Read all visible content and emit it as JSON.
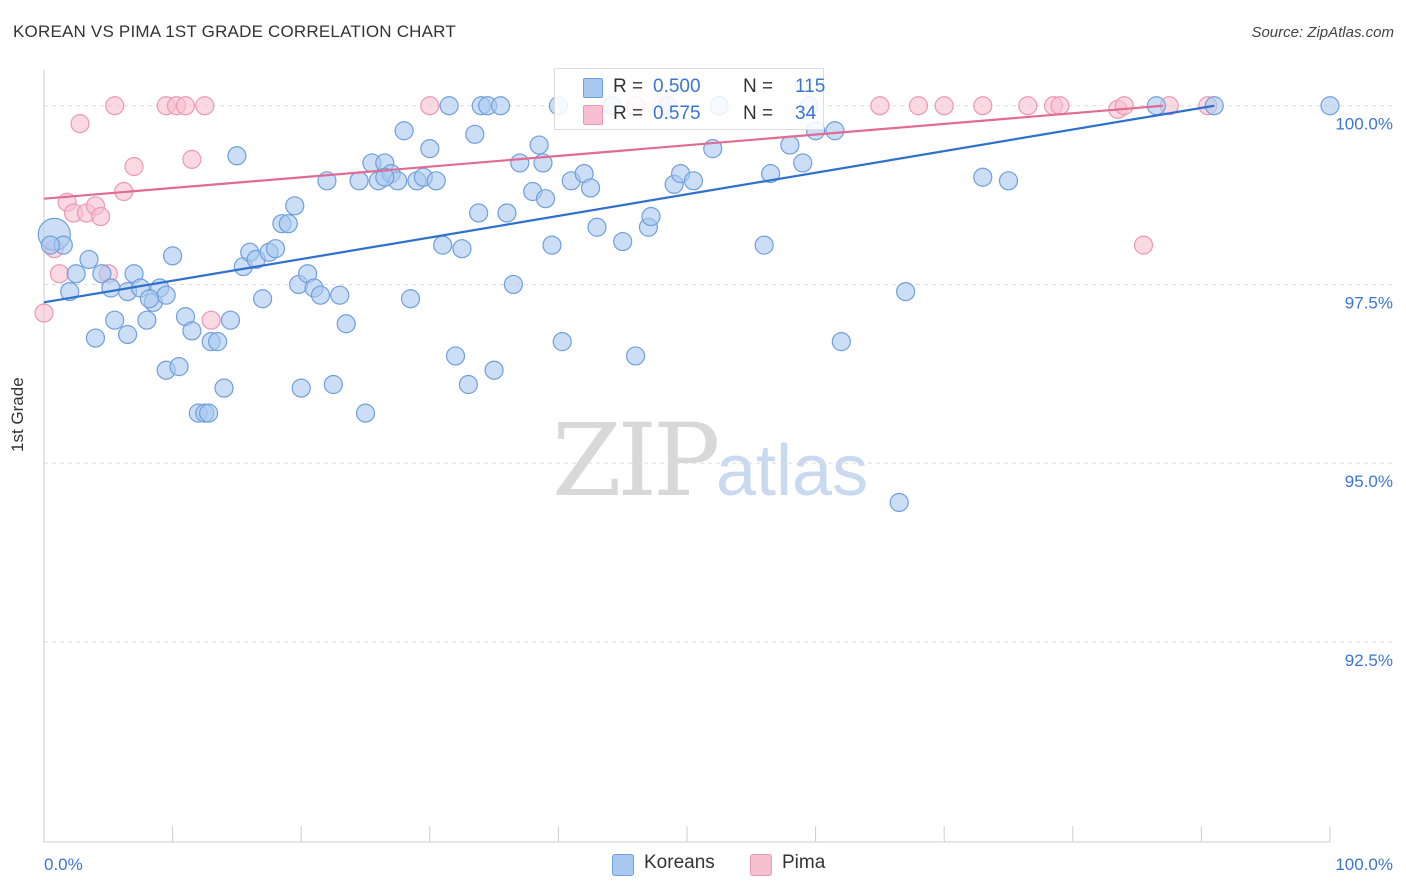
{
  "title": "KOREAN VS PIMA 1ST GRADE CORRELATION CHART",
  "source": "Source: ZipAtlas.com",
  "watermark": {
    "zip": "ZIP",
    "atlas": "atlas"
  },
  "legend": {
    "rows": [
      {
        "r_label": "R =",
        "r_value": "0.500",
        "n_label": "N =",
        "n_value": "115"
      },
      {
        "r_label": "R =",
        "r_value": "0.575",
        "n_label": "N =",
        "n_value": "34"
      }
    ],
    "bottom": [
      "Koreans",
      "Pima"
    ]
  },
  "colors": {
    "korean_fill": "#a9c8ef",
    "korean_stroke": "#6f9fdc",
    "korean_line": "#2f70cc",
    "pima_fill": "#f6c0d1",
    "pima_stroke": "#ec97b4",
    "pima_line": "#e06b93",
    "axis_text": "#3a76d0",
    "grid": "#dcdcdc"
  },
  "chart_data": {
    "type": "scatter",
    "title": "KOREAN VS PIMA 1ST GRADE CORRELATION CHART",
    "xlabel": "",
    "ylabel": "1st Grade",
    "xlim": [
      0,
      100
    ],
    "ylim": [
      89.7,
      100.5
    ],
    "x_tick_labels": [
      "0.0%",
      "100.0%"
    ],
    "y_ticks": [
      92.5,
      95.0,
      97.5,
      100.0
    ],
    "y_tick_labels": [
      "92.5%",
      "95.0%",
      "97.5%",
      "100.0%"
    ],
    "grid": "horizontal dashed",
    "legend_position": "top-center",
    "series": [
      {
        "name": "Koreans",
        "R": 0.5,
        "N": 115,
        "trend": [
          [
            0,
            97.25
          ],
          [
            91,
            100.0
          ]
        ],
        "points": [
          [
            0.8,
            98.2
          ],
          [
            1.5,
            98.05
          ],
          [
            0.5,
            98.05
          ],
          [
            2.5,
            97.65
          ],
          [
            3.5,
            97.85
          ],
          [
            4.5,
            97.65
          ],
          [
            4.0,
            96.75
          ],
          [
            5.2,
            97.45
          ],
          [
            5.5,
            97.0
          ],
          [
            6.5,
            97.4
          ],
          [
            6.5,
            96.8
          ],
          [
            7.0,
            97.65
          ],
          [
            7.5,
            97.45
          ],
          [
            8.0,
            97.0
          ],
          [
            8.5,
            97.25
          ],
          [
            9.0,
            97.45
          ],
          [
            9.5,
            97.35
          ],
          [
            9.5,
            96.3
          ],
          [
            10.5,
            96.35
          ],
          [
            10.0,
            97.9
          ],
          [
            11.0,
            97.05
          ],
          [
            11.5,
            96.85
          ],
          [
            12.0,
            95.7
          ],
          [
            12.5,
            95.7
          ],
          [
            13.0,
            96.7
          ],
          [
            13.5,
            96.7
          ],
          [
            14.0,
            96.05
          ],
          [
            14.5,
            97.0
          ],
          [
            15.0,
            99.3
          ],
          [
            15.5,
            97.75
          ],
          [
            16.0,
            97.95
          ],
          [
            16.5,
            97.85
          ],
          [
            17.0,
            97.3
          ],
          [
            17.5,
            97.95
          ],
          [
            18.0,
            98.0
          ],
          [
            18.5,
            98.35
          ],
          [
            19.0,
            98.35
          ],
          [
            19.5,
            98.6
          ],
          [
            19.8,
            97.5
          ],
          [
            20.0,
            96.05
          ],
          [
            20.5,
            97.65
          ],
          [
            21.0,
            97.45
          ],
          [
            21.5,
            97.35
          ],
          [
            22.0,
            98.95
          ],
          [
            22.5,
            96.1
          ],
          [
            23.0,
            97.35
          ],
          [
            23.5,
            96.95
          ],
          [
            24.5,
            98.95
          ],
          [
            25.0,
            95.7
          ],
          [
            25.5,
            99.2
          ],
          [
            26.0,
            98.95
          ],
          [
            26.5,
            99.2
          ],
          [
            27.0,
            99.05
          ],
          [
            27.5,
            98.95
          ],
          [
            28.0,
            99.65
          ],
          [
            28.5,
            97.3
          ],
          [
            29.0,
            98.95
          ],
          [
            29.5,
            99.0
          ],
          [
            30.0,
            99.4
          ],
          [
            30.5,
            98.95
          ],
          [
            31.0,
            98.05
          ],
          [
            31.5,
            100.0
          ],
          [
            32.0,
            96.5
          ],
          [
            32.5,
            98.0
          ],
          [
            33.0,
            96.1
          ],
          [
            33.5,
            99.6
          ],
          [
            34.0,
            100.0
          ],
          [
            34.5,
            100.0
          ],
          [
            35.0,
            96.3
          ],
          [
            35.5,
            100.0
          ],
          [
            36.0,
            98.5
          ],
          [
            36.5,
            97.5
          ],
          [
            37.0,
            99.2
          ],
          [
            38.0,
            98.8
          ],
          [
            38.5,
            99.45
          ],
          [
            39.0,
            98.7
          ],
          [
            39.5,
            98.05
          ],
          [
            40.0,
            100.0
          ],
          [
            40.3,
            96.7
          ],
          [
            41.0,
            98.95
          ],
          [
            42.0,
            99.05
          ],
          [
            42.5,
            98.85
          ],
          [
            43.0,
            98.3
          ],
          [
            45.0,
            98.1
          ],
          [
            46.0,
            96.5
          ],
          [
            47.0,
            98.3
          ],
          [
            47.2,
            98.45
          ],
          [
            48.5,
            100.0
          ],
          [
            49.0,
            98.9
          ],
          [
            49.5,
            99.05
          ],
          [
            50.5,
            98.95
          ],
          [
            52.0,
            99.4
          ],
          [
            52.5,
            100.0
          ],
          [
            56.0,
            98.05
          ],
          [
            56.5,
            99.05
          ],
          [
            58.0,
            99.45
          ],
          [
            59.0,
            99.2
          ],
          [
            60.0,
            99.65
          ],
          [
            61.5,
            99.65
          ],
          [
            62.0,
            96.7
          ],
          [
            66.5,
            94.45
          ],
          [
            67.0,
            97.4
          ],
          [
            73.0,
            99.0
          ],
          [
            75.0,
            98.95
          ],
          [
            86.5,
            100.0
          ],
          [
            91.0,
            100.0
          ],
          [
            100.0,
            100.0
          ],
          [
            8.2,
            97.3
          ],
          [
            2.0,
            97.4
          ],
          [
            12.8,
            95.7
          ],
          [
            26.5,
            99.0
          ],
          [
            33.8,
            98.5
          ],
          [
            38.8,
            99.2
          ],
          [
            44.2,
            100.0
          ],
          [
            59.5,
            100.0
          ]
        ]
      },
      {
        "name": "Pima",
        "R": 0.575,
        "N": 34,
        "trend": [
          [
            0,
            98.7
          ],
          [
            87,
            100.0
          ]
        ],
        "points": [
          [
            0.0,
            97.1
          ],
          [
            0.8,
            98.0
          ],
          [
            1.2,
            97.65
          ],
          [
            1.8,
            98.65
          ],
          [
            2.3,
            98.5
          ],
          [
            2.8,
            99.75
          ],
          [
            3.3,
            98.5
          ],
          [
            4.0,
            98.6
          ],
          [
            4.4,
            98.45
          ],
          [
            5.0,
            97.65
          ],
          [
            5.5,
            100.0
          ],
          [
            6.2,
            98.8
          ],
          [
            7.0,
            99.15
          ],
          [
            9.5,
            100.0
          ],
          [
            10.3,
            100.0
          ],
          [
            11.0,
            100.0
          ],
          [
            11.5,
            99.25
          ],
          [
            12.5,
            100.0
          ],
          [
            13.0,
            97.0
          ],
          [
            30.0,
            100.0
          ],
          [
            46.0,
            100.0
          ],
          [
            48.0,
            100.0
          ],
          [
            65.0,
            100.0
          ],
          [
            68.0,
            100.0
          ],
          [
            70.0,
            100.0
          ],
          [
            73.0,
            100.0
          ],
          [
            76.5,
            100.0
          ],
          [
            78.5,
            100.0
          ],
          [
            79.0,
            100.0
          ],
          [
            83.5,
            99.95
          ],
          [
            84.0,
            100.0
          ],
          [
            85.5,
            98.05
          ],
          [
            87.5,
            100.0
          ],
          [
            90.5,
            100.0
          ]
        ]
      }
    ]
  }
}
